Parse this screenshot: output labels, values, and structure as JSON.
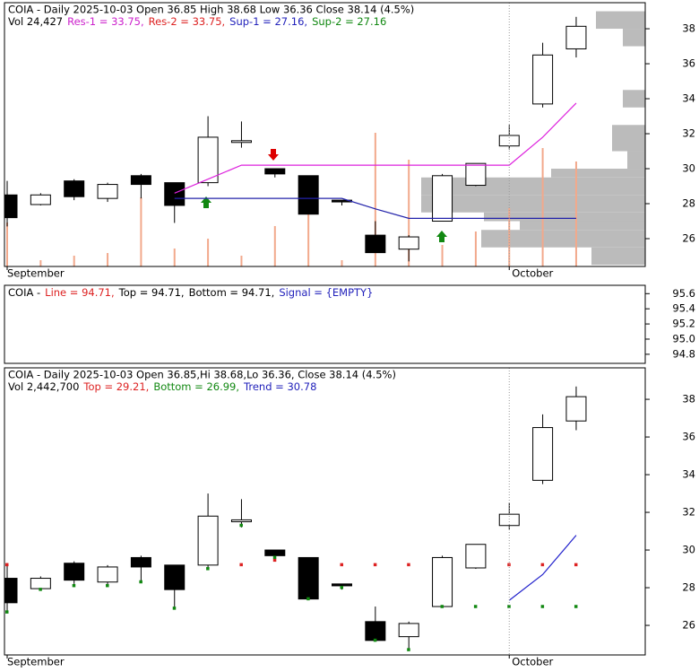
{
  "chart_data": [
    {
      "type": "candlestick",
      "title": "COIA - Daily 2025-10-03 Open 36.85   High 38.68   Low 36.36   Close 38.14 (4.5%)",
      "legend": [
        {
          "text": "Vol 24,427",
          "color": "#000000"
        },
        {
          "text": "Res-1 = 33.75,",
          "color": "#cc22cc"
        },
        {
          "text": "Res-2 = 33.75,",
          "color": "#dd2222"
        },
        {
          "text": "Sup-1 = 27.16,",
          "color": "#2222bb"
        },
        {
          "text": "Sup-2 = 27.16",
          "color": "#118811"
        }
      ],
      "categories": [
        "September",
        null,
        null,
        null,
        null,
        null,
        null,
        null,
        null,
        null,
        null,
        null,
        null,
        null,
        null,
        "October",
        null,
        null
      ],
      "open": [
        28.5,
        27.95,
        29.3,
        28.3,
        29.6,
        29.2,
        29.2,
        31.5,
        30.0,
        29.6,
        28.2,
        26.2,
        25.4,
        27.0,
        29.05,
        31.3,
        33.7,
        36.85
      ],
      "high": [
        29.3,
        28.6,
        29.4,
        29.2,
        29.7,
        29.2,
        33.0,
        32.7,
        30.0,
        29.6,
        28.2,
        27.0,
        26.2,
        29.7,
        30.3,
        32.5,
        37.2,
        38.68
      ],
      "low": [
        26.7,
        27.9,
        28.2,
        28.1,
        28.3,
        26.9,
        29.0,
        31.2,
        29.5,
        27.4,
        27.9,
        25.2,
        24.7,
        27.0,
        29.0,
        31.1,
        33.5,
        36.36
      ],
      "close": [
        27.2,
        28.5,
        28.4,
        29.1,
        29.1,
        27.9,
        31.8,
        31.6,
        29.7,
        27.4,
        28.1,
        25.2,
        26.1,
        29.6,
        30.3,
        31.9,
        36.5,
        38.14
      ],
      "volume": [
        1023000,
        146000,
        251000,
        313000,
        1608000,
        418000,
        647000,
        251000,
        940000,
        1921000,
        146000,
        3111000,
        2485000,
        501000,
        814000,
        1357000,
        2756000,
        2442700
      ],
      "volume_color": "#f2a98c",
      "profile_bins": [
        24.5,
        25.5,
        26.5,
        27.0,
        27.5,
        28.5,
        29.5,
        30.0,
        31.0,
        32.5,
        33.5,
        34.5,
        37.0,
        38.0,
        39.0
      ],
      "profile_values": [
        1200000,
        3660000,
        2800000,
        3600000,
        5000000,
        5000000,
        2100000,
        400000,
        740000,
        0,
        500000,
        0,
        500000,
        1100000
      ],
      "profile_color": "#bbbbbb",
      "series": [
        {
          "style": "line",
          "color": "#dd22dd",
          "values": [
            null,
            null,
            null,
            null,
            null,
            28.6,
            29.4,
            30.2,
            30.2,
            30.2,
            30.2,
            30.2,
            30.2,
            30.2,
            30.2,
            30.2,
            31.8,
            33.75
          ]
        },
        {
          "style": "line",
          "color": "#2222aa",
          "values": [
            null,
            null,
            null,
            null,
            null,
            28.3,
            28.3,
            28.3,
            28.3,
            28.3,
            28.3,
            27.7,
            27.16,
            27.16,
            27.16,
            27.16,
            27.16,
            27.16
          ]
        }
      ],
      "ylim": [
        24.41,
        39.49
      ],
      "yticks": [
        26,
        28,
        30,
        32,
        34,
        36,
        38
      ]
    },
    {
      "type": "line",
      "legend": [
        {
          "text": "COIA -",
          "color": "#000000"
        },
        {
          "text": "Line = 94.71,",
          "color": "#dd2222"
        },
        {
          "text": "Top = 94.71,",
          "color": "#000000"
        },
        {
          "text": "Bottom = 94.71,",
          "color": "#000000"
        },
        {
          "text": "Signal = {EMPTY}",
          "color": "#2222bb"
        }
      ],
      "ylim": [
        94.68,
        95.71
      ],
      "yticks": [
        {
          "value": 94.8,
          "label": "94.8"
        },
        {
          "value": 95.0,
          "label": "95.0"
        },
        {
          "value": 95.2,
          "label": "95.2"
        },
        {
          "value": 95.4,
          "label": "95.4"
        },
        {
          "value": 95.6,
          "label": "95.6"
        }
      ]
    },
    {
      "type": "candlestick",
      "title": "COIA - Daily 2025-10-03 Open 36.85,Hi 38.68,Lo 36.36, Close 38.14 (4.5%)",
      "legend": [
        {
          "text": "Vol 2,442,700",
          "color": "#000000"
        },
        {
          "text": "Top = 29.21,",
          "color": "#dd2222"
        },
        {
          "text": "Bottom = 26.99,",
          "color": "#118811"
        },
        {
          "text": "Trend = 30.78",
          "color": "#2222bb"
        }
      ],
      "categories": [
        "September",
        null,
        null,
        null,
        null,
        null,
        null,
        null,
        null,
        null,
        null,
        null,
        null,
        null,
        null,
        "October",
        null,
        null
      ],
      "open": [
        28.5,
        27.95,
        29.3,
        28.3,
        29.6,
        29.2,
        29.2,
        31.5,
        30.0,
        29.6,
        28.2,
        26.2,
        25.4,
        27.0,
        29.05,
        31.3,
        33.7,
        36.85
      ],
      "high": [
        29.3,
        28.6,
        29.4,
        29.2,
        29.7,
        29.2,
        33.0,
        32.7,
        30.0,
        29.6,
        28.2,
        27.0,
        26.2,
        29.7,
        30.3,
        32.5,
        37.2,
        38.68
      ],
      "low": [
        26.7,
        27.9,
        28.2,
        28.1,
        28.3,
        26.9,
        29.0,
        31.2,
        29.5,
        27.4,
        27.9,
        25.2,
        24.7,
        27.0,
        29.0,
        31.1,
        33.5,
        36.36
      ],
      "close": [
        27.2,
        28.5,
        28.4,
        29.1,
        29.1,
        27.9,
        31.8,
        31.6,
        29.7,
        27.4,
        28.1,
        25.2,
        26.1,
        29.6,
        30.3,
        31.9,
        36.5,
        38.14
      ],
      "series": [
        {
          "style": "dots",
          "color": "#dd2222",
          "values": [
            29.21,
            null,
            null,
            null,
            null,
            null,
            null,
            29.21,
            29.45,
            null,
            29.21,
            29.21,
            29.21,
            null,
            null,
            29.21,
            29.21,
            29.21
          ]
        },
        {
          "style": "dots",
          "color": "#118811",
          "values": [
            26.7,
            27.9,
            28.1,
            28.1,
            28.3,
            26.9,
            29.0,
            31.3,
            29.6,
            27.4,
            28.0,
            25.2,
            24.7,
            26.99,
            26.99,
            26.99,
            26.99,
            26.99
          ]
        },
        {
          "style": "line",
          "color": "#2222cc",
          "values": [
            null,
            null,
            null,
            null,
            null,
            null,
            null,
            null,
            null,
            null,
            null,
            null,
            null,
            null,
            null,
            27.33,
            28.7,
            30.78
          ]
        }
      ],
      "ylim": [
        24.43,
        39.67
      ],
      "yticks": [
        26,
        28,
        30,
        32,
        34,
        36,
        38
      ]
    }
  ]
}
